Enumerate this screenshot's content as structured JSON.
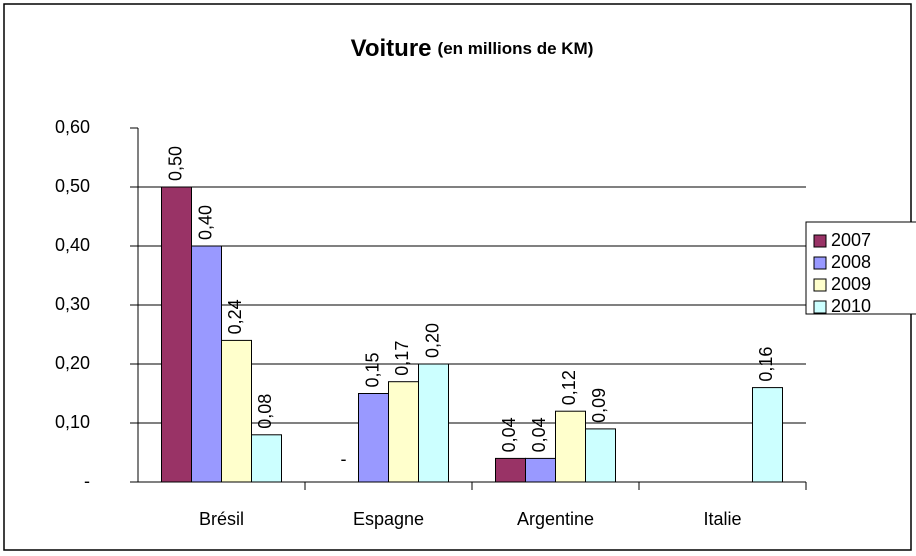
{
  "chart_data": {
    "type": "bar",
    "title": "Voiture",
    "subtitle": "(en millions de KM)",
    "categories": [
      "Brésil",
      "Espagne",
      "Argentine",
      "Italie"
    ],
    "series": [
      {
        "name": "2007",
        "color": "#993366",
        "values": [
          0.5,
          0,
          0.04,
          null
        ],
        "value_labels": [
          "0,50",
          "-",
          "0,04",
          null
        ]
      },
      {
        "name": "2008",
        "color": "#9999ff",
        "values": [
          0.4,
          0.15,
          0.04,
          null
        ],
        "value_labels": [
          "0,40",
          "0,15",
          "0,04",
          null
        ]
      },
      {
        "name": "2009",
        "color": "#ffffcc",
        "values": [
          0.24,
          0.17,
          0.12,
          null
        ],
        "value_labels": [
          "0,24",
          "0,17",
          "0,12",
          null
        ]
      },
      {
        "name": "2010",
        "color": "#ccffff",
        "values": [
          0.08,
          0.2,
          0.09,
          0.16
        ],
        "value_labels": [
          "0,08",
          "0,20",
          "0,09",
          "0,16"
        ]
      }
    ],
    "ylim": [
      0,
      0.6
    ],
    "yticks": [
      {
        "value": 0,
        "label": "-"
      },
      {
        "value": 0.1,
        "label": "0,10"
      },
      {
        "value": 0.2,
        "label": "0,20"
      },
      {
        "value": 0.3,
        "label": "0,30"
      },
      {
        "value": 0.4,
        "label": "0,40"
      },
      {
        "value": 0.5,
        "label": "0,50"
      },
      {
        "value": 0.6,
        "label": "0,60"
      }
    ],
    "grid": true,
    "legend": "right"
  }
}
